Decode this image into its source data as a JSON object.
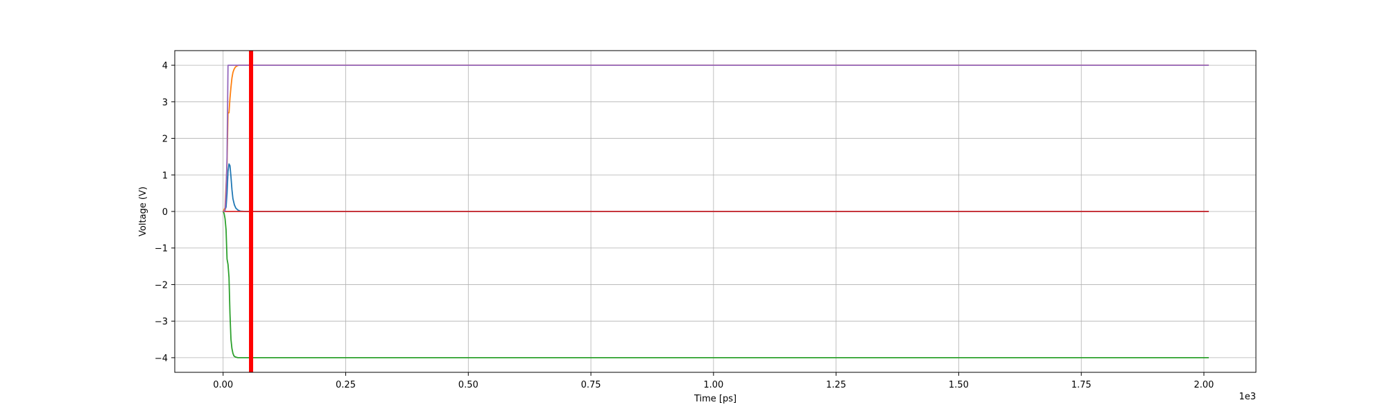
{
  "chart_data": {
    "type": "line",
    "title": "",
    "xlabel": "Time [ps]",
    "ylabel": "Voltage (V)",
    "x_offset_label": "1e3",
    "xlim": [
      -98.6,
      2106.1
    ],
    "ylim": [
      -4.4,
      4.4
    ],
    "x_ticks": [
      0,
      250,
      500,
      750,
      1000,
      1250,
      1500,
      1750,
      2000
    ],
    "x_tick_labels": [
      "0.00",
      "0.25",
      "0.50",
      "0.75",
      "1.00",
      "1.25",
      "1.50",
      "1.75",
      "2.00"
    ],
    "y_ticks": [
      -4,
      -3,
      -2,
      -1,
      0,
      1,
      2,
      3,
      4
    ],
    "y_tick_labels": [
      "−4",
      "−3",
      "−2",
      "−1",
      "0",
      "1",
      "2",
      "3",
      "4"
    ],
    "grid": true,
    "legend": "none",
    "marker_line": {
      "x": 57,
      "color": "#ff0000"
    },
    "series": [
      {
        "color": "#1f77b4",
        "x": [
          0,
          2,
          4,
          6,
          8,
          10,
          12,
          14,
          16,
          18,
          20,
          23,
          26,
          30,
          35,
          45,
          60,
          2010
        ],
        "y": [
          0,
          0.02,
          0.05,
          0.12,
          0.5,
          1.1,
          1.3,
          1.25,
          0.95,
          0.6,
          0.35,
          0.18,
          0.09,
          0.04,
          0.01,
          0,
          0,
          0
        ]
      },
      {
        "color": "#ff7f0e",
        "x": [
          0,
          4,
          8,
          10,
          12,
          14,
          16,
          18,
          20,
          22,
          25,
          28,
          32,
          40,
          2010
        ],
        "y": [
          0,
          0.1,
          1.3,
          2.7,
          2.7,
          3.1,
          3.4,
          3.65,
          3.8,
          3.88,
          3.95,
          3.98,
          4,
          4,
          4
        ]
      },
      {
        "color": "#2ca02c",
        "x": [
          0,
          2,
          4,
          6,
          8,
          10,
          12,
          14,
          16,
          18,
          20,
          22,
          25,
          30,
          40,
          2010
        ],
        "y": [
          0,
          -0.05,
          -0.2,
          -0.5,
          -1.3,
          -1.45,
          -1.8,
          -2.8,
          -3.5,
          -3.75,
          -3.88,
          -3.95,
          -3.98,
          -4,
          -4,
          -4
        ]
      },
      {
        "color": "#d62728",
        "x": [
          0,
          2010
        ],
        "y": [
          0,
          0
        ]
      },
      {
        "color": "#9467bd",
        "x": [
          0,
          4,
          6,
          8,
          10,
          12,
          2010
        ],
        "y": [
          0,
          0.02,
          0.5,
          1.5,
          4,
          4,
          4
        ]
      }
    ]
  }
}
